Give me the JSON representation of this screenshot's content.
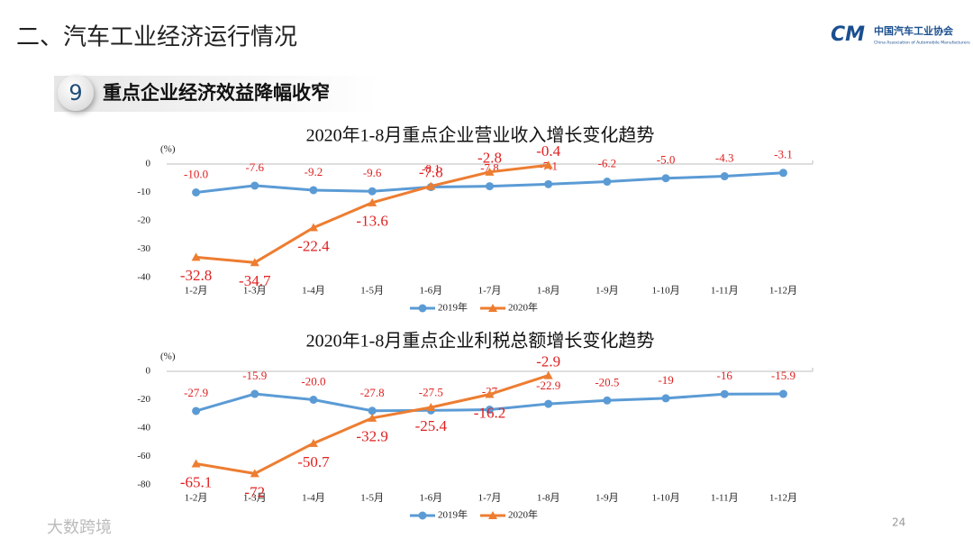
{
  "header": {
    "title": "二、汽车工业经济运行情况",
    "logo_mark": "CM",
    "logo_text": "中国汽车工业协会",
    "logo_subtext": "China Association of Automobile Manufacturers"
  },
  "section": {
    "number": "9",
    "title": "重点企业经济效益降幅收窄"
  },
  "chart_data": [
    {
      "type": "line",
      "title": "2020年1-8月重点企业营业收入增长变化趋势",
      "y_unit": "(%)",
      "categories": [
        "1-2月",
        "1-3月",
        "1-4月",
        "1-5月",
        "1-6月",
        "1-7月",
        "1-8月",
        "1-9月",
        "1-10月",
        "1-11月",
        "1-12月"
      ],
      "series": [
        {
          "name": "2019年",
          "color": "#5b9bd5",
          "marker": "circle",
          "values": [
            -10.0,
            -7.6,
            -9.2,
            -9.6,
            -8.1,
            -7.8,
            -7.1,
            -6.2,
            -5.0,
            -4.3,
            -3.1
          ],
          "value_labels": [
            "-10.0",
            "-7.6",
            "-9.2",
            "-9.6",
            "-8.1",
            "-7.8",
            "-7.1",
            "-6.2",
            "-5.0",
            "-4.3",
            "-3.1"
          ]
        },
        {
          "name": "2020年",
          "color": "#ed7d31",
          "marker": "triangle",
          "values": [
            -32.8,
            -34.7,
            -22.4,
            -13.6,
            -7.8,
            -2.8,
            -0.4,
            null,
            null,
            null,
            null
          ],
          "value_labels": [
            "-32.8",
            "-34.7",
            "-22.4",
            "-13.6",
            "-7.8",
            "-2.8",
            "-0.4",
            null,
            null,
            null,
            null
          ]
        }
      ],
      "ylim": [
        -40,
        0
      ],
      "yticks": [
        -40,
        -30,
        -20,
        -10,
        0
      ],
      "grid": false,
      "legend": "bottom"
    },
    {
      "type": "line",
      "title": "2020年1-8月重点企业利税总额增长变化趋势",
      "y_unit": "(%)",
      "categories": [
        "1-2月",
        "1-3月",
        "1-4月",
        "1-5月",
        "1-6月",
        "1-7月",
        "1-8月",
        "1-9月",
        "1-10月",
        "1-11月",
        "1-12月"
      ],
      "series": [
        {
          "name": "2019年",
          "color": "#5b9bd5",
          "marker": "circle",
          "values": [
            -27.9,
            -15.9,
            -20.0,
            -27.8,
            -27.5,
            -27,
            -22.9,
            -20.5,
            -19,
            -16,
            -15.9
          ],
          "value_labels": [
            "-27.9",
            "-15.9",
            "-20.0",
            "-27.8",
            "-27.5",
            "-27",
            "-22.9",
            "-20.5",
            "-19",
            "-16",
            "-15.9"
          ]
        },
        {
          "name": "2020年",
          "color": "#ed7d31",
          "marker": "triangle",
          "values": [
            -65.1,
            -72,
            -50.7,
            -32.9,
            -25.4,
            -16.2,
            -2.9,
            null,
            null,
            null,
            null
          ],
          "value_labels": [
            "-65.1",
            "-72",
            "-50.7",
            "-32.9",
            "-25.4",
            "-16.2",
            "-2.9",
            null,
            null,
            null,
            null
          ]
        }
      ],
      "ylim": [
        -80,
        0
      ],
      "yticks": [
        -80,
        -60,
        -40,
        -20,
        0
      ],
      "grid": false,
      "legend": "bottom"
    }
  ],
  "footer": {
    "page_number": "24",
    "watermark": "大数跨境"
  }
}
